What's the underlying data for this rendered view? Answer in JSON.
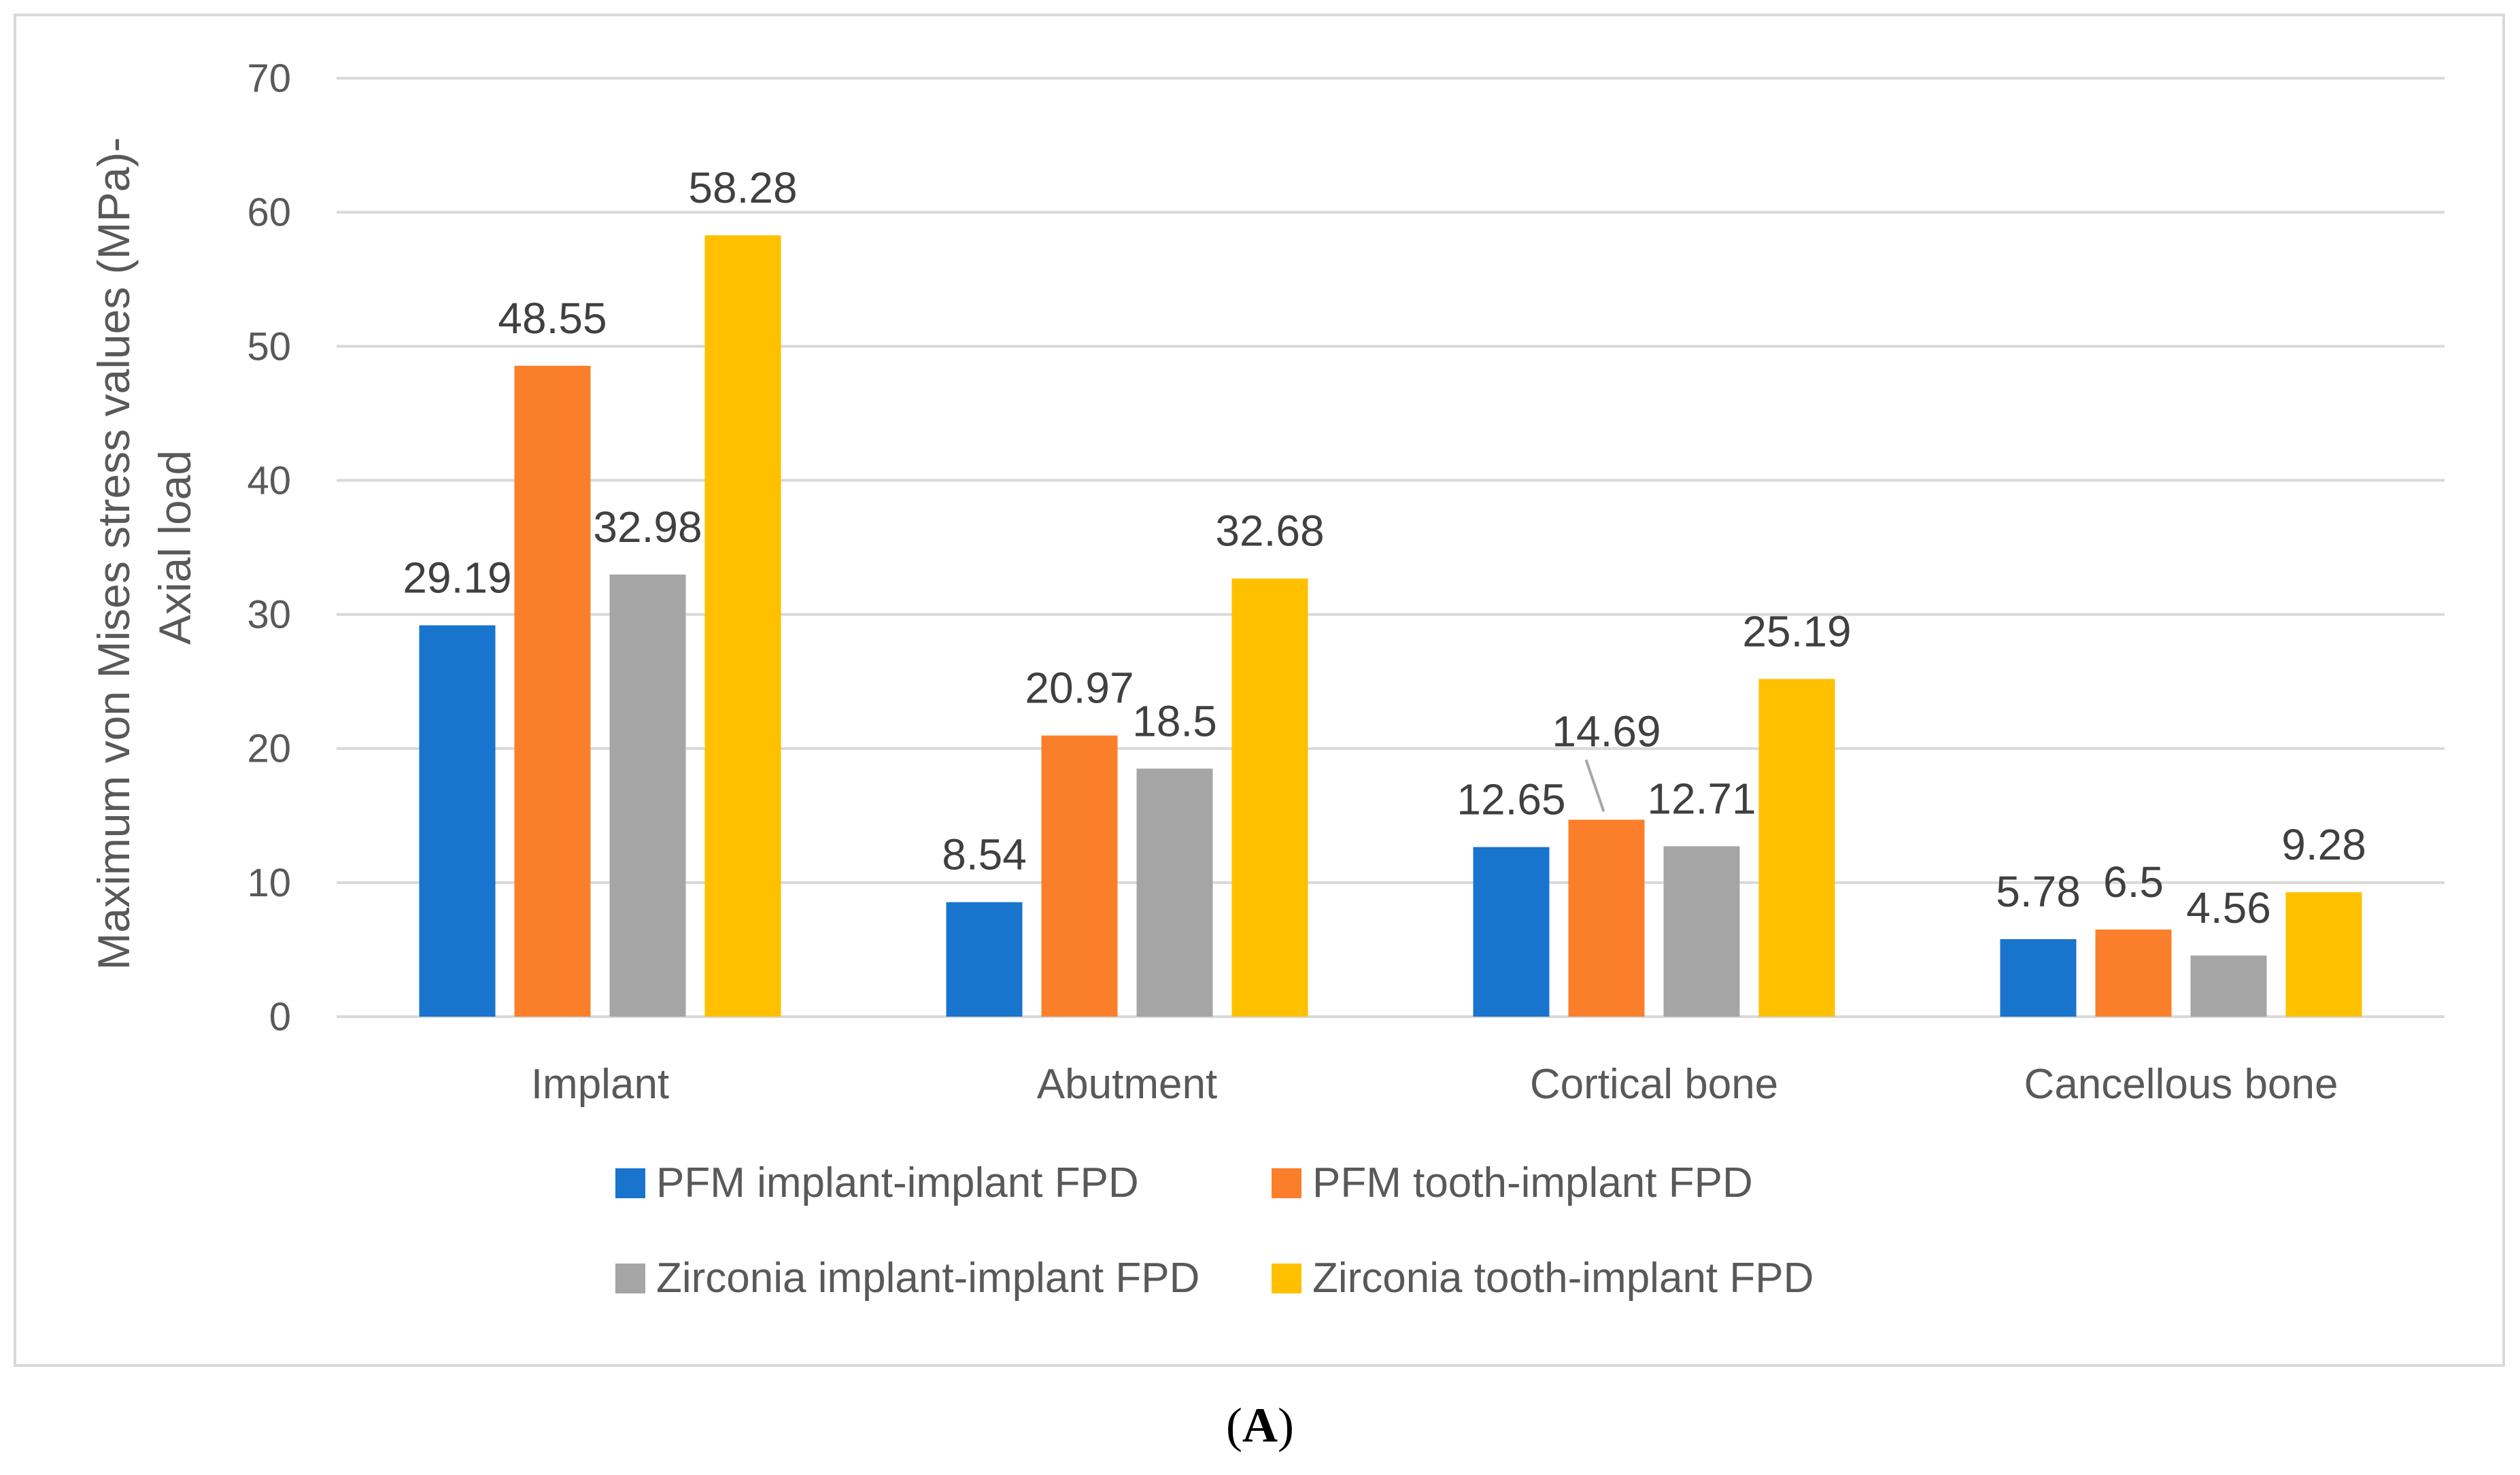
{
  "caption": {
    "open": "(",
    "letter": "A",
    "close": ")"
  },
  "chart_data": {
    "type": "bar",
    "title": "",
    "xlabel": "",
    "ylabel_line1": "Maximum von Mises stress values (MPa)-",
    "ylabel_line2": "Axial load",
    "ylim": [
      0,
      70
    ],
    "yticks": [
      0,
      10,
      20,
      30,
      40,
      50,
      60,
      70
    ],
    "grid": true,
    "legend_position": "bottom",
    "categories": [
      "Implant",
      "Abutment",
      "Cortical bone",
      "Cancellous bone"
    ],
    "series": [
      {
        "name": "PFM implant-implant FPD",
        "color": "#1874cd",
        "values": [
          29.19,
          8.54,
          12.65,
          5.78
        ]
      },
      {
        "name": "PFM tooth-implant FPD",
        "color": "#fb7f2b",
        "values": [
          48.55,
          20.97,
          14.69,
          6.5
        ]
      },
      {
        "name": "Zirconia implant-implant FPD",
        "color": "#a5a5a5",
        "values": [
          32.98,
          18.5,
          12.71,
          4.56
        ]
      },
      {
        "name": "Zirconia tooth-implant FPD",
        "color": "#ffc000",
        "values": [
          58.28,
          32.68,
          25.19,
          9.28
        ]
      }
    ]
  }
}
